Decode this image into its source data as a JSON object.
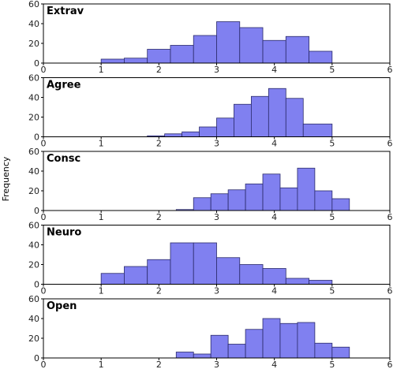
{
  "chart_data": {
    "type": "bar",
    "ylabel": "Frequency",
    "panels": [
      {
        "title": "Extrav",
        "xlim": [
          0,
          6
        ],
        "ylim": [
          0,
          60
        ],
        "xticks": [
          "0",
          "1",
          "2",
          "3",
          "4",
          "5",
          "6"
        ],
        "yticks": [
          "0",
          "20",
          "40",
          "60"
        ],
        "bins": [
          {
            "x0": 1.0,
            "x1": 1.4,
            "value": 4
          },
          {
            "x0": 1.4,
            "x1": 1.8,
            "value": 5
          },
          {
            "x0": 1.8,
            "x1": 2.2,
            "value": 14
          },
          {
            "x0": 2.2,
            "x1": 2.6,
            "value": 18
          },
          {
            "x0": 2.6,
            "x1": 3.0,
            "value": 28
          },
          {
            "x0": 3.0,
            "x1": 3.4,
            "value": 42
          },
          {
            "x0": 3.4,
            "x1": 3.8,
            "value": 36
          },
          {
            "x0": 3.8,
            "x1": 4.2,
            "value": 23
          },
          {
            "x0": 4.2,
            "x1": 4.6,
            "value": 27
          },
          {
            "x0": 4.6,
            "x1": 5.0,
            "value": 12
          }
        ]
      },
      {
        "title": "Agree",
        "xlim": [
          0,
          6
        ],
        "ylim": [
          0,
          60
        ],
        "xticks": [
          "0",
          "1",
          "2",
          "3",
          "4",
          "5",
          "6"
        ],
        "yticks": [
          "0",
          "20",
          "40",
          "60"
        ],
        "bins": [
          {
            "x0": 1.8,
            "x1": 2.1,
            "value": 1
          },
          {
            "x0": 2.1,
            "x1": 2.4,
            "value": 3
          },
          {
            "x0": 2.4,
            "x1": 2.7,
            "value": 5
          },
          {
            "x0": 2.7,
            "x1": 3.0,
            "value": 10
          },
          {
            "x0": 3.0,
            "x1": 3.3,
            "value": 19
          },
          {
            "x0": 3.3,
            "x1": 3.6,
            "value": 33
          },
          {
            "x0": 3.6,
            "x1": 3.9,
            "value": 41
          },
          {
            "x0": 3.9,
            "x1": 4.2,
            "value": 49
          },
          {
            "x0": 4.2,
            "x1": 4.5,
            "value": 39
          },
          {
            "x0": 4.5,
            "x1": 5.0,
            "value": 13
          }
        ]
      },
      {
        "title": "Consc",
        "xlim": [
          0,
          6
        ],
        "ylim": [
          0,
          60
        ],
        "xticks": [
          "0",
          "1",
          "2",
          "3",
          "4",
          "5",
          "6"
        ],
        "yticks": [
          "0",
          "20",
          "40",
          "60"
        ],
        "bins": [
          {
            "x0": 2.3,
            "x1": 2.6,
            "value": 1
          },
          {
            "x0": 2.6,
            "x1": 2.9,
            "value": 13
          },
          {
            "x0": 2.9,
            "x1": 3.2,
            "value": 17
          },
          {
            "x0": 3.2,
            "x1": 3.5,
            "value": 21
          },
          {
            "x0": 3.5,
            "x1": 3.8,
            "value": 27
          },
          {
            "x0": 3.8,
            "x1": 4.1,
            "value": 37
          },
          {
            "x0": 4.1,
            "x1": 4.4,
            "value": 23
          },
          {
            "x0": 4.4,
            "x1": 4.7,
            "value": 43
          },
          {
            "x0": 4.7,
            "x1": 5.0,
            "value": 20
          },
          {
            "x0": 5.0,
            "x1": 5.3,
            "value": 12
          }
        ]
      },
      {
        "title": "Neuro",
        "xlim": [
          0,
          6
        ],
        "ylim": [
          0,
          60
        ],
        "xticks": [
          "0",
          "1",
          "2",
          "3",
          "4",
          "5",
          "6"
        ],
        "yticks": [
          "0",
          "20",
          "40",
          "60"
        ],
        "bins": [
          {
            "x0": 1.0,
            "x1": 1.4,
            "value": 11
          },
          {
            "x0": 1.4,
            "x1": 1.8,
            "value": 18
          },
          {
            "x0": 1.8,
            "x1": 2.2,
            "value": 25
          },
          {
            "x0": 2.2,
            "x1": 2.6,
            "value": 42
          },
          {
            "x0": 2.6,
            "x1": 3.0,
            "value": 42
          },
          {
            "x0": 3.0,
            "x1": 3.4,
            "value": 27
          },
          {
            "x0": 3.4,
            "x1": 3.8,
            "value": 20
          },
          {
            "x0": 3.8,
            "x1": 4.2,
            "value": 16
          },
          {
            "x0": 4.2,
            "x1": 4.6,
            "value": 6
          },
          {
            "x0": 4.6,
            "x1": 5.0,
            "value": 4
          }
        ]
      },
      {
        "title": "Open",
        "xlim": [
          0,
          6
        ],
        "ylim": [
          0,
          60
        ],
        "xticks": [
          "0",
          "1",
          "2",
          "3",
          "4",
          "5",
          "6"
        ],
        "yticks": [
          "0",
          "20",
          "40",
          "60"
        ],
        "bins": [
          {
            "x0": 2.3,
            "x1": 2.6,
            "value": 6
          },
          {
            "x0": 2.6,
            "x1": 2.9,
            "value": 4
          },
          {
            "x0": 2.9,
            "x1": 3.2,
            "value": 23
          },
          {
            "x0": 3.2,
            "x1": 3.5,
            "value": 14
          },
          {
            "x0": 3.5,
            "x1": 3.8,
            "value": 29
          },
          {
            "x0": 3.8,
            "x1": 4.1,
            "value": 40
          },
          {
            "x0": 4.1,
            "x1": 4.4,
            "value": 35
          },
          {
            "x0": 4.4,
            "x1": 4.7,
            "value": 36
          },
          {
            "x0": 4.7,
            "x1": 5.0,
            "value": 15
          },
          {
            "x0": 5.0,
            "x1": 5.3,
            "value": 11
          }
        ]
      }
    ]
  }
}
